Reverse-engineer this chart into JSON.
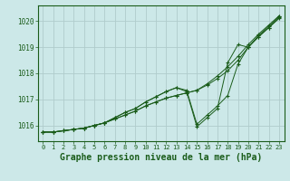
{
  "background_color": "#cce8e8",
  "grid_color": "#b0cccc",
  "line_color": "#1a5c1a",
  "marker_color": "#1a5c1a",
  "xlabel": "Graphe pression niveau de la mer (hPa)",
  "xlabel_fontsize": 7,
  "xticks": [
    0,
    1,
    2,
    3,
    4,
    5,
    6,
    7,
    8,
    9,
    10,
    11,
    12,
    13,
    14,
    15,
    16,
    17,
    18,
    19,
    20,
    21,
    22,
    23
  ],
  "yticks": [
    1016,
    1017,
    1018,
    1019,
    1020
  ],
  "xlim": [
    -0.5,
    23.5
  ],
  "ylim": [
    1015.4,
    1020.6
  ],
  "series": [
    [
      1015.75,
      1015.75,
      1015.8,
      1015.85,
      1015.9,
      1016.0,
      1016.1,
      1016.25,
      1016.4,
      1016.55,
      1016.75,
      1016.9,
      1017.05,
      1017.15,
      1017.25,
      1017.35,
      1017.55,
      1017.8,
      1018.1,
      1018.5,
      1019.0,
      1019.4,
      1019.75,
      1020.1
    ],
    [
      1015.75,
      1015.75,
      1015.8,
      1015.85,
      1015.9,
      1016.0,
      1016.1,
      1016.25,
      1016.4,
      1016.55,
      1016.75,
      1016.9,
      1017.05,
      1017.15,
      1017.25,
      1017.35,
      1017.6,
      1017.9,
      1018.25,
      1018.65,
      1019.1,
      1019.5,
      1019.85,
      1020.2
    ],
    [
      1015.75,
      1015.75,
      1015.8,
      1015.85,
      1015.9,
      1016.0,
      1016.1,
      1016.3,
      1016.5,
      1016.65,
      1016.9,
      1017.1,
      1017.3,
      1017.45,
      1017.35,
      1016.05,
      1016.4,
      1016.75,
      1017.15,
      1018.35,
      1019.0,
      1019.45,
      1019.8,
      1020.2
    ],
    [
      1015.75,
      1015.75,
      1015.8,
      1015.85,
      1015.9,
      1016.0,
      1016.1,
      1016.3,
      1016.5,
      1016.65,
      1016.9,
      1017.1,
      1017.3,
      1017.45,
      1017.3,
      1015.95,
      1016.3,
      1016.65,
      1018.4,
      1019.1,
      1019.0,
      1019.4,
      1019.75,
      1020.15
    ]
  ]
}
